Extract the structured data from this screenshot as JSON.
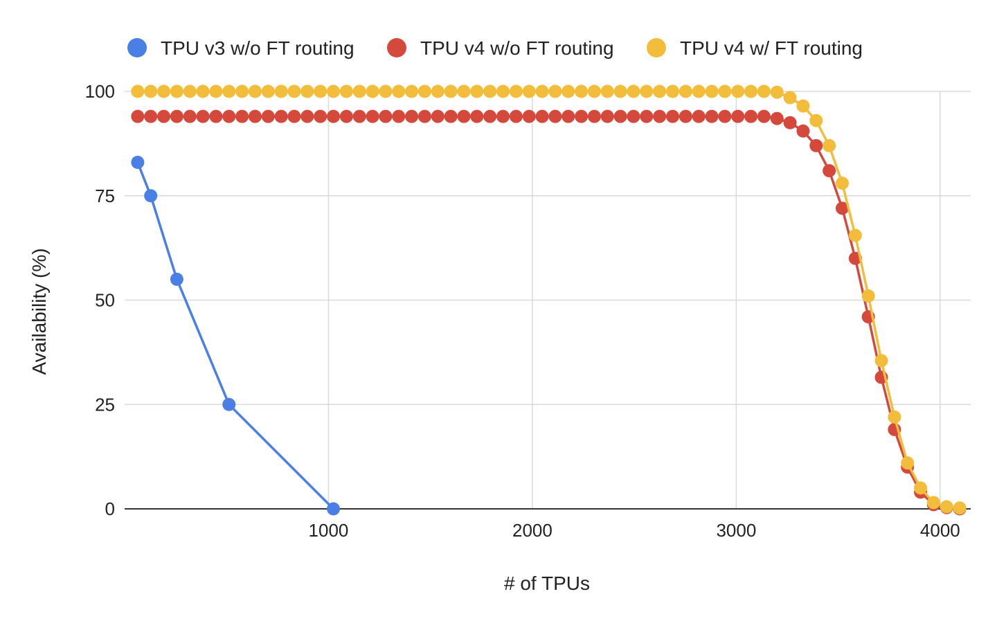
{
  "chart_data": {
    "type": "line",
    "title": "",
    "xlabel": "# of TPUs",
    "ylabel": "Availability (%)",
    "xlim": [
      0,
      4150
    ],
    "ylim": [
      0,
      100
    ],
    "x_ticks": [
      1000,
      2000,
      3000,
      4000
    ],
    "y_ticks": [
      0,
      25,
      50,
      75,
      100
    ],
    "grid": true,
    "legend_position": "top",
    "series": [
      {
        "name": "TPU v3 w/o FT routing",
        "color": "#4a7fe6",
        "x": [
          64,
          128,
          256,
          512,
          1024
        ],
        "y": [
          83,
          75,
          55,
          25,
          0
        ]
      },
      {
        "name": "TPU v4 w/o FT routing",
        "color": "#d5493d",
        "x": [
          64,
          128,
          192,
          256,
          320,
          384,
          448,
          512,
          576,
          640,
          704,
          768,
          832,
          896,
          960,
          1024,
          1088,
          1152,
          1216,
          1280,
          1344,
          1408,
          1472,
          1536,
          1600,
          1664,
          1728,
          1792,
          1856,
          1920,
          1984,
          2048,
          2112,
          2176,
          2240,
          2304,
          2368,
          2432,
          2496,
          2560,
          2624,
          2688,
          2752,
          2816,
          2880,
          2944,
          3008,
          3072,
          3136,
          3200,
          3264,
          3328,
          3392,
          3456,
          3520,
          3584,
          3648,
          3712,
          3776,
          3840,
          3904,
          3968,
          4032,
          4096
        ],
        "y": [
          94,
          94,
          94,
          94,
          94,
          94,
          94,
          94,
          94,
          94,
          94,
          94,
          94,
          94,
          94,
          94,
          94,
          94,
          94,
          94,
          94,
          94,
          94,
          94,
          94,
          94,
          94,
          94,
          94,
          94,
          94,
          94,
          94,
          94,
          94,
          94,
          94,
          94,
          94,
          94,
          94,
          94,
          94,
          94,
          94,
          94,
          94,
          94,
          94,
          93.5,
          92.5,
          90.5,
          87,
          81,
          72,
          60,
          46,
          31.5,
          19,
          10,
          4,
          1,
          0.3,
          0
        ]
      },
      {
        "name": "TPU v4 w/ FT routing",
        "color": "#f2bd3b",
        "x": [
          64,
          128,
          192,
          256,
          320,
          384,
          448,
          512,
          576,
          640,
          704,
          768,
          832,
          896,
          960,
          1024,
          1088,
          1152,
          1216,
          1280,
          1344,
          1408,
          1472,
          1536,
          1600,
          1664,
          1728,
          1792,
          1856,
          1920,
          1984,
          2048,
          2112,
          2176,
          2240,
          2304,
          2368,
          2432,
          2496,
          2560,
          2624,
          2688,
          2752,
          2816,
          2880,
          2944,
          3008,
          3072,
          3136,
          3200,
          3264,
          3328,
          3392,
          3456,
          3520,
          3584,
          3648,
          3712,
          3776,
          3840,
          3904,
          3968,
          4032,
          4096
        ],
        "y": [
          100,
          100,
          100,
          100,
          100,
          100,
          100,
          100,
          100,
          100,
          100,
          100,
          100,
          100,
          100,
          100,
          100,
          100,
          100,
          100,
          100,
          100,
          100,
          100,
          100,
          100,
          100,
          100,
          100,
          100,
          100,
          100,
          100,
          100,
          100,
          100,
          100,
          100,
          100,
          100,
          100,
          100,
          100,
          100,
          100,
          100,
          100,
          100,
          100,
          99.8,
          98.5,
          96.5,
          93,
          87,
          78,
          65.5,
          51,
          35.5,
          22,
          11,
          5,
          1.5,
          0.5,
          0.2
        ]
      }
    ]
  }
}
